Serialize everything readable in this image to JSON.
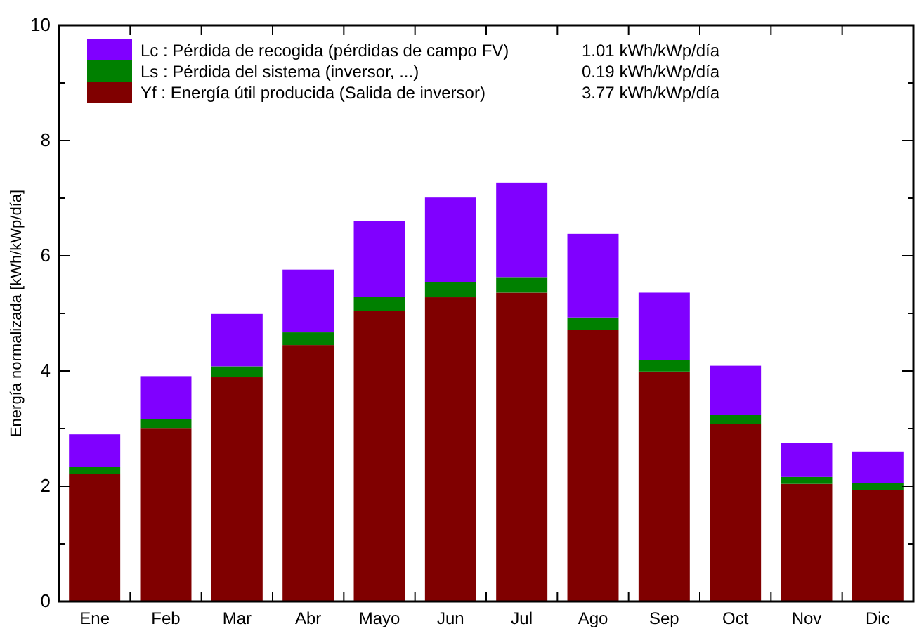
{
  "chart_data": {
    "type": "bar",
    "stacked": true,
    "ylabel": "Energía normalizada [kWh/kWp/día]",
    "categories": [
      "Ene",
      "Feb",
      "Mar",
      "Abr",
      "Mayo",
      "Jun",
      "Jul",
      "Ago",
      "Sep",
      "Oct",
      "Nov",
      "Dic"
    ],
    "series": [
      {
        "name": "Yf : Energía útil producida  (Salida de inversor)",
        "color": "#800000",
        "values": [
          2.21,
          3.01,
          3.89,
          4.45,
          5.04,
          5.28,
          5.36,
          4.71,
          3.99,
          3.08,
          2.04,
          1.93
        ]
      },
      {
        "name": "Ls : Pérdida del sistema  (inversor, ...)",
        "color": "#008000",
        "values": [
          0.13,
          0.15,
          0.19,
          0.22,
          0.25,
          0.26,
          0.27,
          0.22,
          0.2,
          0.16,
          0.12,
          0.12
        ]
      },
      {
        "name": "Lc : Pérdida de recogida (pérdidas de campo FV)",
        "color": "#8000ff",
        "values": [
          0.56,
          0.75,
          0.91,
          1.09,
          1.31,
          1.47,
          1.64,
          1.45,
          1.17,
          0.85,
          0.59,
          0.55
        ]
      }
    ],
    "annotations": [
      "3.77 kWh/kWp/día",
      "0.19 kWh/kWp/día",
      "1.01 kWh/kWp/día"
    ],
    "ylim": [
      0,
      10
    ],
    "yticks": [
      0,
      {
        "value": 1,
        "label": null
      },
      2,
      {
        "value": 3,
        "label": null
      },
      4,
      {
        "value": 5,
        "label": null
      },
      6,
      {
        "value": 7,
        "label": null
      },
      8,
      {
        "value": 9,
        "label": null
      },
      10
    ],
    "grid": false,
    "legend": "top left"
  }
}
